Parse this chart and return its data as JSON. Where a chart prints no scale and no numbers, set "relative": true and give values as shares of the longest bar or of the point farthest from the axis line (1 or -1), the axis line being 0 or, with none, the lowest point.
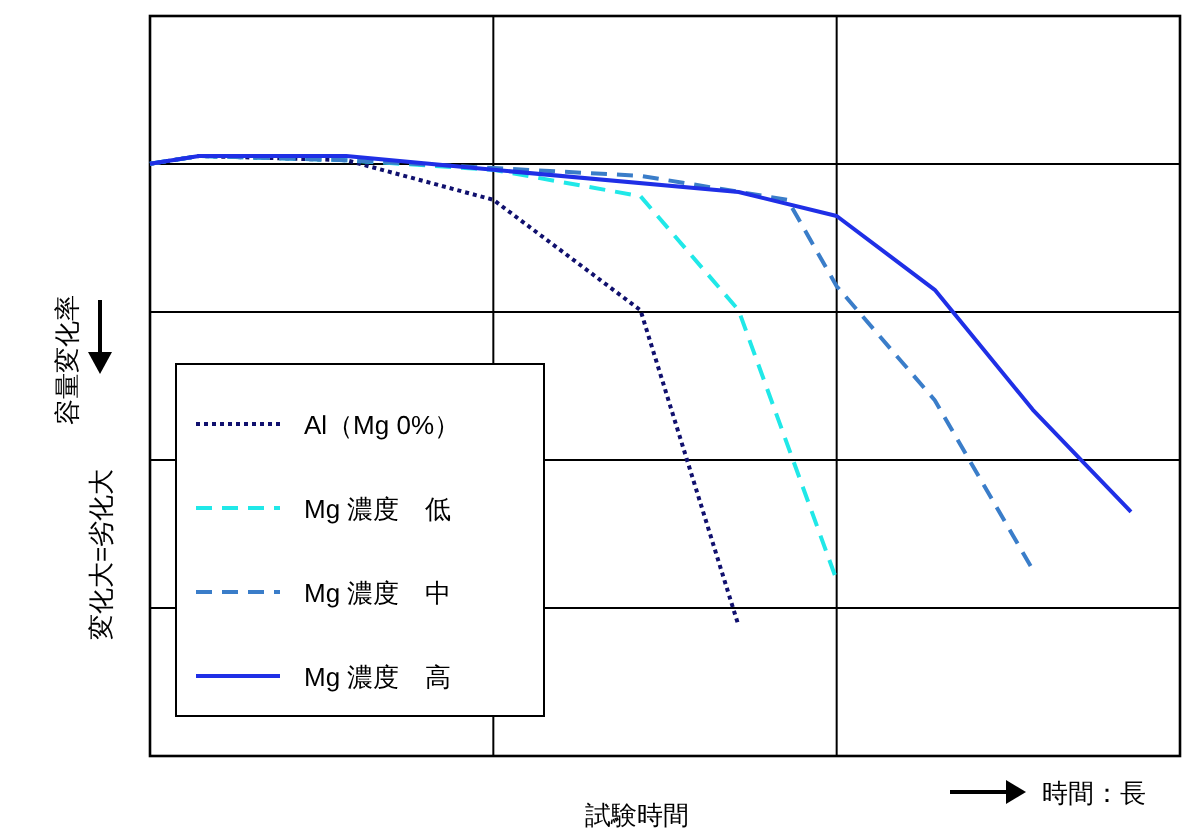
{
  "chart_data": {
    "type": "line",
    "relative": true,
    "xlabel": "試験時間",
    "ylabel": "容量変化率",
    "annotations": [
      "変化大=劣化大",
      "時間：長"
    ],
    "grid": true,
    "legend": "bottom left",
    "categories": [
      null,
      null,
      null,
      null,
      null,
      null,
      null,
      null,
      null,
      null,
      null,
      null,
      null,
      null,
      null,
      null,
      null,
      null,
      null,
      null,
      null,
      null
    ],
    "series": [
      {
        "name": "Al（Mg 0%）",
        "color": "#10106e",
        "line_style": "dotted",
        "values": [
          0.987,
          1.0,
          null,
          null,
          0.993,
          null,
          null,
          0.927,
          null,
          null,
          0.743,
          null,
          0.217,
          null,
          null,
          null,
          null,
          null,
          null,
          null,
          null,
          null
        ]
      },
      {
        "name": "Mg 濃度　低",
        "color": "#20e8e8",
        "line_style": "dashed",
        "values": [
          0.987,
          1.0,
          null,
          null,
          0.993,
          null,
          null,
          0.977,
          null,
          null,
          0.933,
          null,
          0.743,
          null,
          0.293,
          null,
          null,
          null,
          null,
          null,
          null,
          null
        ]
      },
      {
        "name": "Mg 濃度　中",
        "color": "#3a7dc9",
        "line_style": "dashed",
        "values": [
          0.987,
          1.0,
          null,
          null,
          0.993,
          null,
          null,
          0.98,
          null,
          null,
          0.967,
          null,
          null,
          0.927,
          0.783,
          null,
          0.593,
          null,
          0.31,
          null,
          null,
          null
        ]
      },
      {
        "name": "Mg 濃度　高",
        "color": "#1f2fe6",
        "line_style": "solid",
        "values": [
          0.987,
          1.0,
          null,
          null,
          1.0,
          null,
          null,
          0.977,
          null,
          null,
          null,
          null,
          0.94,
          null,
          0.9,
          null,
          0.777,
          null,
          0.577,
          null,
          0.407,
          null
        ]
      }
    ]
  }
}
